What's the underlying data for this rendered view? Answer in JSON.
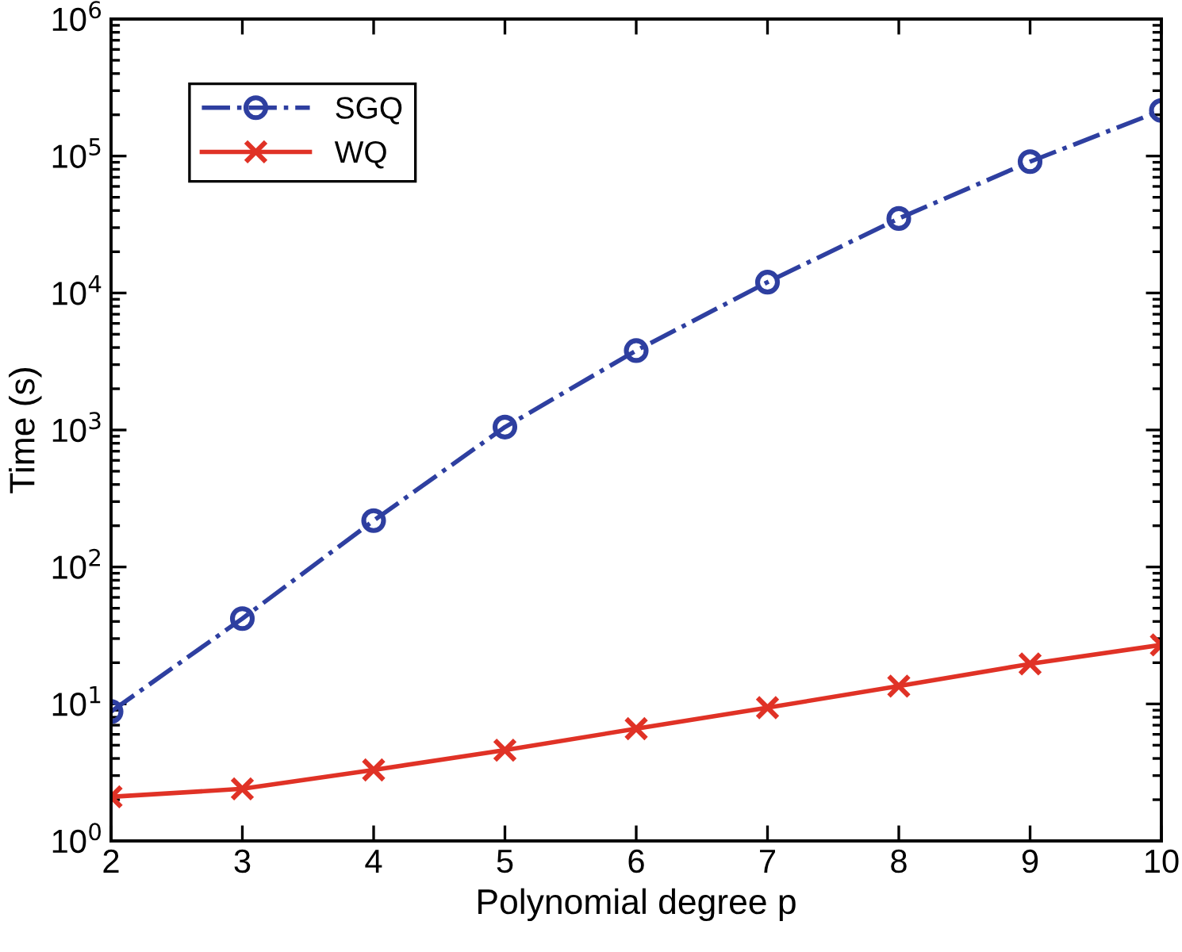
{
  "chart_data": {
    "type": "line",
    "xlabel": "Polynomial degree p",
    "ylabel": "Time (s)",
    "x": [
      2,
      3,
      4,
      5,
      6,
      7,
      8,
      9,
      10
    ],
    "series": [
      {
        "name": "SGQ",
        "color": "#2e3fa0",
        "marker": "circle",
        "line_style": "dashdot",
        "values": [
          8.8,
          42,
          218,
          1050,
          3800,
          12000,
          35000,
          91000,
          215000
        ]
      },
      {
        "name": "WQ",
        "color": "#e03226",
        "marker": "cross",
        "line_style": "solid",
        "values": [
          2.1,
          2.4,
          3.3,
          4.6,
          6.6,
          9.4,
          13.5,
          19.6,
          27
        ]
      }
    ],
    "log": "y",
    "xlim": [
      2,
      10
    ],
    "xticks": [
      2,
      3,
      4,
      5,
      6,
      7,
      8,
      9,
      10
    ],
    "ylim": [
      1,
      1000000
    ],
    "yticks": [
      {
        "value": 1,
        "label": "10$^{0}$"
      },
      {
        "value": 10,
        "label": "10$^{1}$"
      },
      {
        "value": 100,
        "label": "10$^{2}$"
      },
      {
        "value": 1000,
        "label": "10$^{3}$"
      },
      {
        "value": 10000,
        "label": "10$^{4}$"
      },
      {
        "value": 100000,
        "label": "10$^{5}$"
      },
      {
        "value": 1000000,
        "label": "10$^{6}$"
      }
    ],
    "grid": false,
    "legend": "top left"
  }
}
